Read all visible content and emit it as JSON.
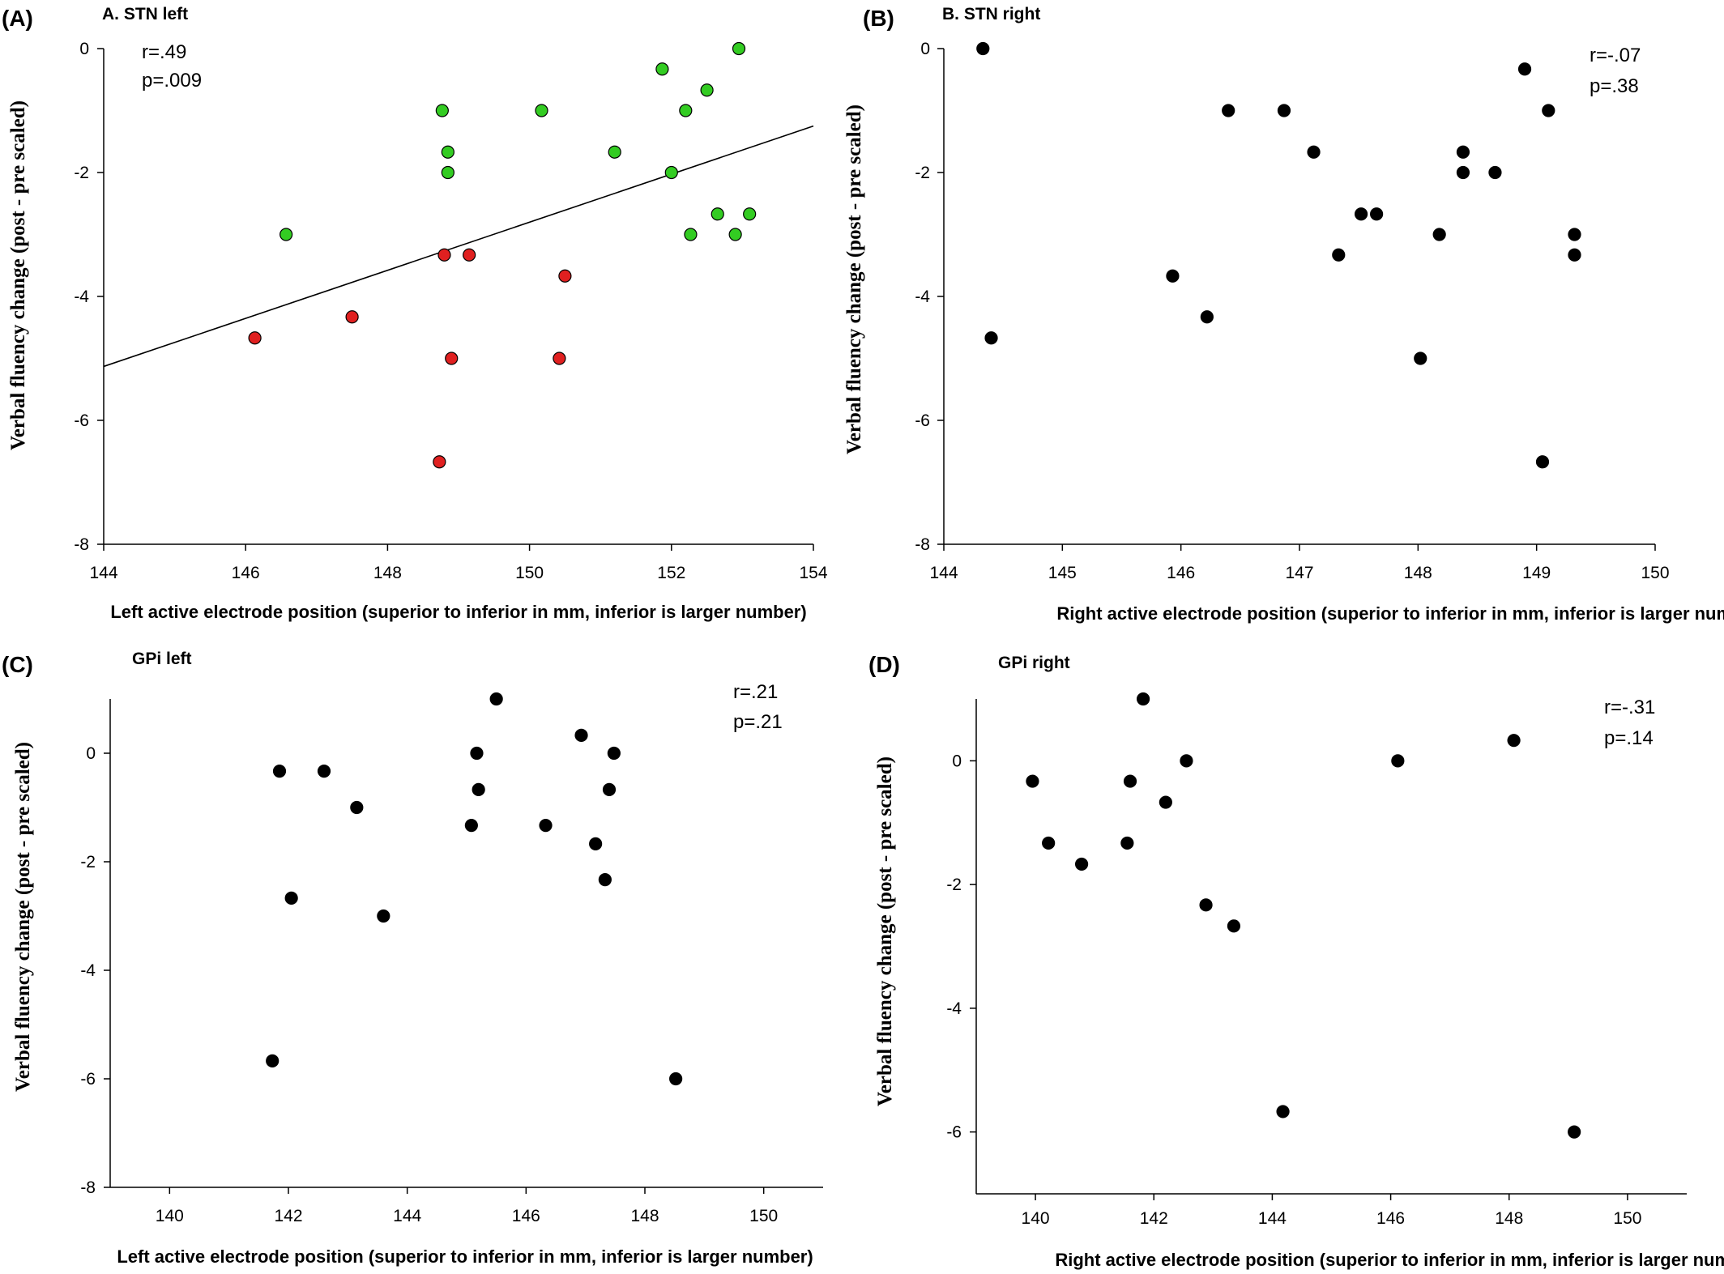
{
  "chart_data": [
    {
      "type": "scatter",
      "panel": "(A)",
      "title": "A. STN left",
      "xlabel": "Left active electrode position (superior to inferior in mm, inferior is larger number)",
      "ylabel": "Verbal fluency change (post - pre scaled)",
      "xlim": [
        144,
        154
      ],
      "ylim": [
        -8,
        0
      ],
      "xticks": [
        "144",
        "146",
        "148",
        "150",
        "152",
        "154"
      ],
      "yticks": [
        "0",
        "-2",
        "-4",
        "-6",
        "-8"
      ],
      "stats": [
        "r=.49",
        "p=.009"
      ],
      "regression_line": {
        "x1": 144,
        "y1": -5.13,
        "x2": 154,
        "y2": -1.25
      },
      "series": [
        {
          "color": "#33cc22",
          "points": [
            [
              146.57,
              -3.0
            ],
            [
              148.77,
              -1.0
            ],
            [
              148.85,
              -1.67
            ],
            [
              148.85,
              -2.0
            ],
            [
              150.17,
              -1.0
            ],
            [
              151.2,
              -1.67
            ],
            [
              151.87,
              -0.33
            ],
            [
              152.0,
              -2.0
            ],
            [
              152.2,
              -1.0
            ],
            [
              152.27,
              -3.0
            ],
            [
              152.5,
              -0.67
            ],
            [
              152.65,
              -2.67
            ],
            [
              152.9,
              -3.0
            ],
            [
              152.95,
              0.0
            ],
            [
              153.1,
              -2.67
            ]
          ]
        },
        {
          "color": "#e02020",
          "points": [
            [
              146.13,
              -4.67
            ],
            [
              147.5,
              -4.33
            ],
            [
              148.73,
              -6.67
            ],
            [
              148.8,
              -3.33
            ],
            [
              148.9,
              -5.0
            ],
            [
              149.15,
              -3.33
            ],
            [
              150.42,
              -5.0
            ],
            [
              150.5,
              -3.67
            ]
          ]
        }
      ]
    },
    {
      "type": "scatter",
      "panel": "(B)",
      "title": "B. STN right",
      "xlabel": "Right active electrode position (superior to inferior in mm, inferior is larger number)",
      "ylabel": "Verbal fluency change (post - pre scaled)",
      "xlim": [
        144,
        150
      ],
      "ylim": [
        -8,
        0
      ],
      "xticks": [
        "144",
        "145",
        "146",
        "147",
        "148",
        "149",
        "150"
      ],
      "yticks": [
        "0",
        "-2",
        "-4",
        "-6",
        "-8"
      ],
      "stats": [
        "r=-.07",
        "p=.38"
      ],
      "series": [
        {
          "color": "#000000",
          "points": [
            [
              144.33,
              0.0
            ],
            [
              144.4,
              -4.67
            ],
            [
              145.93,
              -3.67
            ],
            [
              146.22,
              -4.33
            ],
            [
              146.4,
              -1.0
            ],
            [
              146.87,
              -1.0
            ],
            [
              147.12,
              -1.67
            ],
            [
              147.33,
              -3.33
            ],
            [
              147.52,
              -2.67
            ],
            [
              147.65,
              -2.67
            ],
            [
              148.02,
              -5.0
            ],
            [
              148.18,
              -3.0
            ],
            [
              148.38,
              -1.67
            ],
            [
              148.38,
              -2.0
            ],
            [
              148.65,
              -2.0
            ],
            [
              148.9,
              -0.33
            ],
            [
              149.05,
              -6.67
            ],
            [
              149.1,
              -1.0
            ],
            [
              149.32,
              -3.0
            ],
            [
              149.32,
              -3.33
            ]
          ]
        }
      ]
    },
    {
      "type": "scatter",
      "panel": "(C)",
      "title": "GPi left",
      "xlabel": "Left active electrode position (superior to inferior in mm, inferior is larger number)",
      "ylabel": "Verbal fluency change (post - pre scaled)",
      "xlim": [
        139,
        151
      ],
      "ylim": [
        -8,
        1
      ],
      "xticks": [
        "140",
        "142",
        "144",
        "146",
        "148",
        "150"
      ],
      "yticks": [
        "0",
        "-2",
        "-4",
        "-6",
        "-8"
      ],
      "stats": [
        "r=.21",
        "p=.21"
      ],
      "series": [
        {
          "color": "#000000",
          "points": [
            [
              141.73,
              -5.67
            ],
            [
              141.85,
              -0.33
            ],
            [
              142.05,
              -2.67
            ],
            [
              142.6,
              -0.33
            ],
            [
              143.15,
              -1.0
            ],
            [
              143.6,
              -3.0
            ],
            [
              145.08,
              -1.33
            ],
            [
              145.17,
              0.0
            ],
            [
              145.2,
              -0.67
            ],
            [
              145.5,
              1.0
            ],
            [
              146.33,
              -1.33
            ],
            [
              146.93,
              0.33
            ],
            [
              147.17,
              -1.67
            ],
            [
              147.33,
              -2.33
            ],
            [
              147.4,
              -0.67
            ],
            [
              147.48,
              0.0
            ],
            [
              148.52,
              -6.0
            ]
          ]
        }
      ]
    },
    {
      "type": "scatter",
      "panel": "(D)",
      "title": "GPi right",
      "xlabel": "Right active electrode position (superior to inferior in mm, inferior is larger number)",
      "ylabel": "Verbal fluency change (post - pre scaled)",
      "xlim": [
        139,
        151
      ],
      "ylim": [
        -7,
        1
      ],
      "xticks": [
        "140",
        "142",
        "144",
        "146",
        "148",
        "150"
      ],
      "yticks": [
        "0",
        "-2",
        "-4",
        "-6"
      ],
      "stats": [
        "r=-.31",
        "p=.14"
      ],
      "series": [
        {
          "color": "#000000",
          "points": [
            [
              139.95,
              -0.33
            ],
            [
              140.22,
              -1.33
            ],
            [
              140.78,
              -1.67
            ],
            [
              141.55,
              -1.33
            ],
            [
              141.6,
              -0.33
            ],
            [
              141.82,
              1.0
            ],
            [
              142.2,
              -0.67
            ],
            [
              142.55,
              0.0
            ],
            [
              142.88,
              -2.33
            ],
            [
              143.35,
              -2.67
            ],
            [
              144.18,
              -5.67
            ],
            [
              146.12,
              0.0
            ],
            [
              148.08,
              0.33
            ],
            [
              149.1,
              -6.0
            ]
          ]
        }
      ]
    }
  ]
}
